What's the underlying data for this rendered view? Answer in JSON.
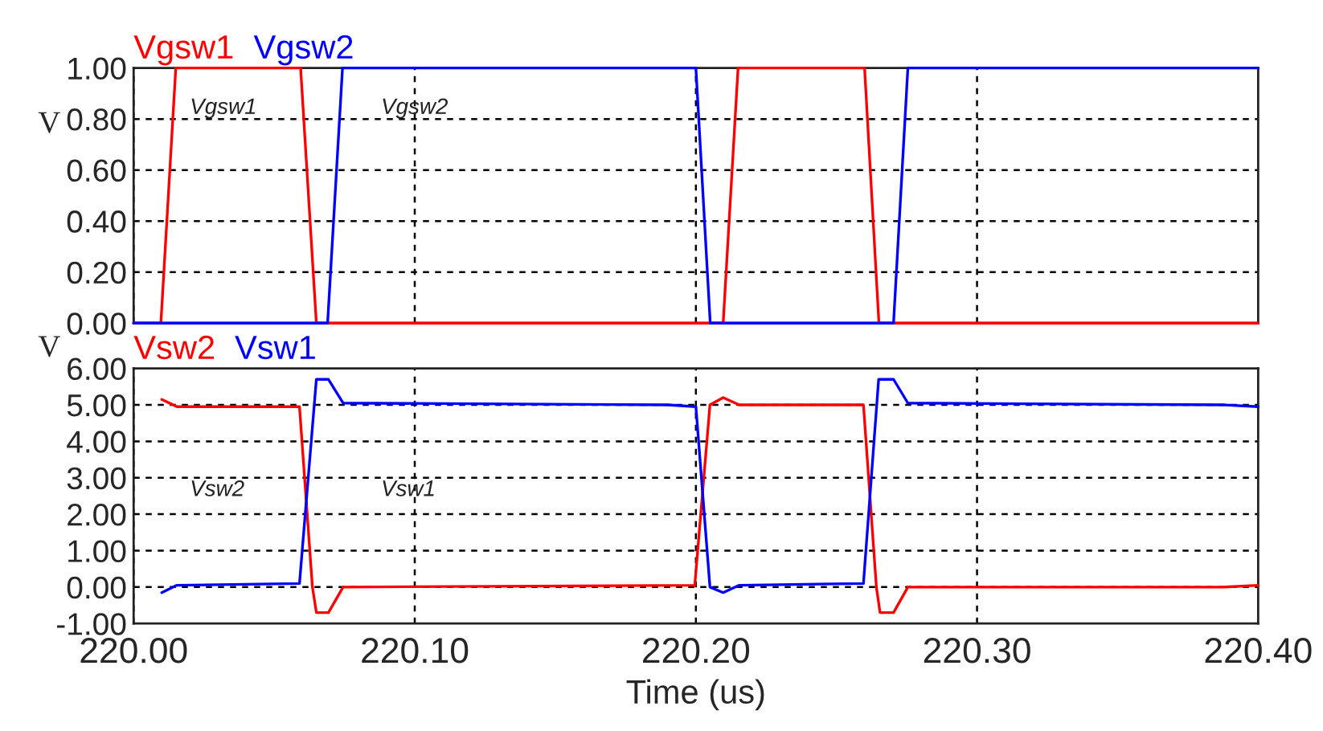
{
  "chart_data": [
    {
      "type": "line",
      "ylabel": "V",
      "xlim": [
        220.0,
        220.4
      ],
      "xticks": [
        220.0,
        220.1,
        220.2,
        220.3,
        220.4
      ],
      "ylim": [
        0,
        1
      ],
      "yticks": [
        {
          "value": 0,
          "label": "0.00"
        },
        {
          "value": 0.2,
          "label": "0.20"
        },
        {
          "value": 0.4,
          "label": "0.40"
        },
        {
          "value": 0.6,
          "label": "0.60"
        },
        {
          "value": 0.8,
          "label": "0.80"
        },
        {
          "value": 1,
          "label": "1.00"
        }
      ],
      "tick_labels": "y",
      "grid": true,
      "legend": "top left",
      "line_style": "solid",
      "annotations": [
        "Vgsw1",
        "Vgsw2"
      ],
      "series": [
        {
          "name": "Vgsw1",
          "color": "#ff0000",
          "x": [
            220.0,
            220.0097,
            220.015,
            220.0594,
            220.065,
            220.2097,
            220.215,
            220.26,
            220.2651,
            220.4
          ],
          "values": [
            0,
            0,
            1,
            1,
            0,
            0,
            1,
            1,
            0,
            0
          ]
        },
        {
          "name": "Vgsw2",
          "color": "#0000ff",
          "x": [
            220.0,
            220.069,
            220.0743,
            220.2,
            220.2051,
            220.2703,
            220.2754,
            220.4
          ],
          "values": [
            0,
            0,
            1,
            1,
            0,
            0,
            1,
            1
          ]
        }
      ]
    },
    {
      "type": "line",
      "ylabel": "V",
      "xlabel": "Time (us)",
      "xlim": [
        220.0,
        220.4
      ],
      "xticks": [
        {
          "value": 220.0,
          "label": "220.00"
        },
        {
          "value": 220.1,
          "label": "220.10"
        },
        {
          "value": 220.2,
          "label": "220.20"
        },
        {
          "value": 220.3,
          "label": "220.30"
        },
        {
          "value": 220.4,
          "label": "220.40"
        }
      ],
      "ylim": [
        -1,
        6
      ],
      "yticks": [
        {
          "value": -1,
          "label": "-1.00"
        },
        {
          "value": 0,
          "label": "0.00"
        },
        {
          "value": 1,
          "label": "1.00"
        },
        {
          "value": 2,
          "label": "2.00"
        },
        {
          "value": 3,
          "label": "3.00"
        },
        {
          "value": 4,
          "label": "4.00"
        },
        {
          "value": 5,
          "label": "5.00"
        },
        {
          "value": 6,
          "label": "6.00"
        }
      ],
      "grid": true,
      "legend": "top left",
      "line_style": "solid",
      "annotations": [
        "Vsw2",
        "Vsw1"
      ],
      "series": [
        {
          "name": "Vsw2",
          "color": "#ff0000",
          "x": [
            220.01,
            220.0154,
            220.059,
            220.0636,
            220.065,
            220.0693,
            220.0745,
            220.1996,
            220.205,
            220.2097,
            220.2154,
            220.2596,
            220.2642,
            220.2655,
            220.2703,
            220.2754,
            220.3878,
            220.4
          ],
          "values": [
            5.15,
            4.95,
            4.95,
            0,
            -0.7,
            -0.7,
            0,
            0.05,
            5.0,
            5.2,
            5.0,
            5.0,
            0,
            -0.7,
            -0.7,
            0,
            0,
            0.05
          ]
        },
        {
          "name": "Vsw1",
          "color": "#0000ff",
          "x": [
            220.01,
            220.0154,
            220.059,
            220.065,
            220.0693,
            220.0745,
            220.19,
            220.2,
            220.205,
            220.2097,
            220.2154,
            220.2596,
            220.265,
            220.2703,
            220.2754,
            220.3878,
            220.4
          ],
          "values": [
            -0.15,
            0.05,
            0.1,
            5.7,
            5.7,
            5.05,
            5.0,
            4.95,
            0,
            -0.15,
            0.05,
            0.1,
            5.7,
            5.7,
            5.05,
            5.0,
            4.95
          ]
        }
      ]
    }
  ]
}
